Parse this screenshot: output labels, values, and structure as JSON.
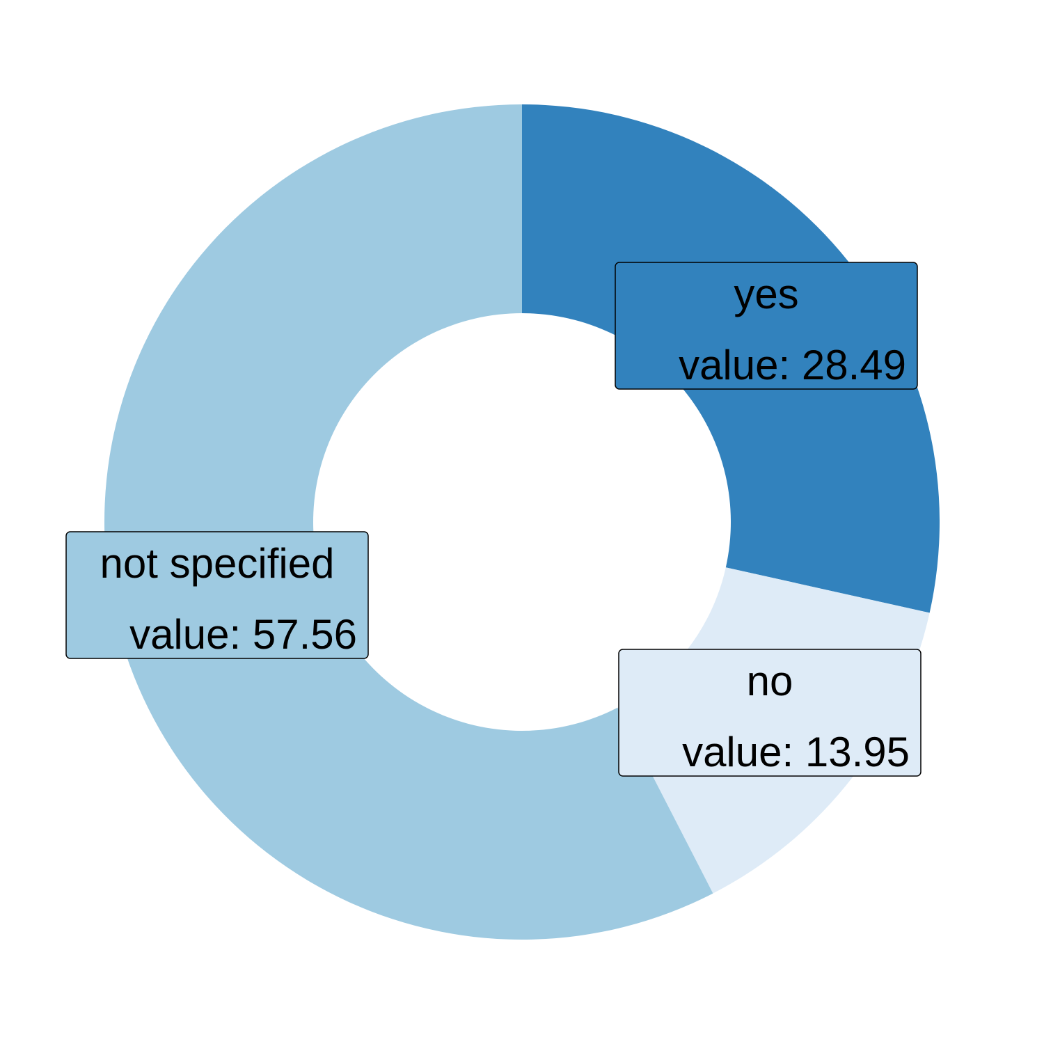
{
  "chart_data": {
    "type": "pie",
    "variant": "donut",
    "title": "",
    "value_prefix": "value: ",
    "slices": [
      {
        "label": "yes",
        "value": 28.49,
        "color": "#3282bd"
      },
      {
        "label": "no",
        "value": 13.95,
        "color": "#deebf7"
      },
      {
        "label": "not specified",
        "value": 57.56,
        "color": "#9ecae1"
      }
    ],
    "start": "12 o'clock",
    "direction": "clockwise",
    "legend": "none"
  }
}
